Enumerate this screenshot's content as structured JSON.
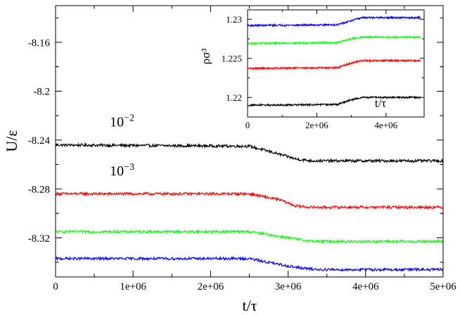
{
  "chart_data": [
    {
      "type": "line",
      "xlabel": "t/τ",
      "ylabel": "U/ε",
      "xlim": [
        0,
        5000000
      ],
      "ylim": [
        -8.352,
        -8.13
      ],
      "xticks": [
        0,
        1000000,
        2000000,
        3000000,
        4000000,
        5000000
      ],
      "xtick_labels": [
        "0",
        "1e+06",
        "2e+06",
        "3e+06",
        "4e+06",
        "5e+06"
      ],
      "yticks": [
        -8.16,
        -8.2,
        -8.24,
        -8.28,
        -8.32
      ],
      "ytick_labels": [
        "-8.16",
        "-8.2",
        "-8.24",
        "-8.28",
        "-8.32"
      ],
      "annotations": [
        {
          "base": "10",
          "exponent": "−2",
          "x": 700000,
          "y": -8.229
        },
        {
          "base": "10",
          "exponent": "−3",
          "x": 700000,
          "y": -8.269
        }
      ],
      "series": [
        {
          "color": "#000000",
          "x": [
            0,
            2500000,
            2800000,
            3100000,
            3300000,
            5000000
          ],
          "values": [
            -8.244,
            -8.245,
            -8.25,
            -8.2555,
            -8.257,
            -8.257
          ]
        },
        {
          "color": "#ff0000",
          "x": [
            0,
            2500000,
            2900000,
            3100000,
            3300000,
            5000000
          ],
          "values": [
            -8.284,
            -8.284,
            -8.289,
            -8.294,
            -8.295,
            -8.295
          ]
        },
        {
          "color": "#00ff00",
          "x": [
            0,
            2500000,
            2900000,
            3200000,
            3400000,
            5000000
          ],
          "values": [
            -8.315,
            -8.315,
            -8.319,
            -8.322,
            -8.323,
            -8.323
          ]
        },
        {
          "color": "#0000ff",
          "x": [
            0,
            2500000,
            2900000,
            3200000,
            3400000,
            5000000
          ],
          "values": [
            -8.337,
            -8.337,
            -8.342,
            -8.345,
            -8.346,
            -8.346
          ]
        }
      ]
    },
    {
      "type": "line",
      "xlabel": "t/τ",
      "ylabel": "ρσ³",
      "xlim": [
        0,
        5100000
      ],
      "ylim": [
        1.2175,
        1.2312
      ],
      "xticks": [
        0,
        2000000,
        4000000
      ],
      "xtick_labels": [
        "0",
        "2e+06",
        "4e+06"
      ],
      "yticks": [
        1.22,
        1.225,
        1.23
      ],
      "ytick_labels": [
        "1.22",
        "1.225",
        "1.23"
      ],
      "series": [
        {
          "color": "#0000ff",
          "x": [
            0,
            2600000,
            3000000,
            3300000,
            3500000,
            5000000
          ],
          "values": [
            1.2292,
            1.2293,
            1.2298,
            1.2302,
            1.2302,
            1.2302
          ]
        },
        {
          "color": "#00ff00",
          "x": [
            0,
            2600000,
            3000000,
            3300000,
            3500000,
            5000000
          ],
          "values": [
            1.2269,
            1.227,
            1.2275,
            1.2277,
            1.2277,
            1.2277
          ]
        },
        {
          "color": "#ff0000",
          "x": [
            0,
            2600000,
            3000000,
            3300000,
            3500000,
            5000000
          ],
          "values": [
            1.2237,
            1.2238,
            1.2244,
            1.2247,
            1.2247,
            1.2247
          ]
        },
        {
          "color": "#000000",
          "x": [
            0,
            2600000,
            3000000,
            3300000,
            3500000,
            5000000
          ],
          "values": [
            1.219,
            1.2191,
            1.2197,
            1.22,
            1.22,
            1.22
          ]
        }
      ]
    }
  ]
}
